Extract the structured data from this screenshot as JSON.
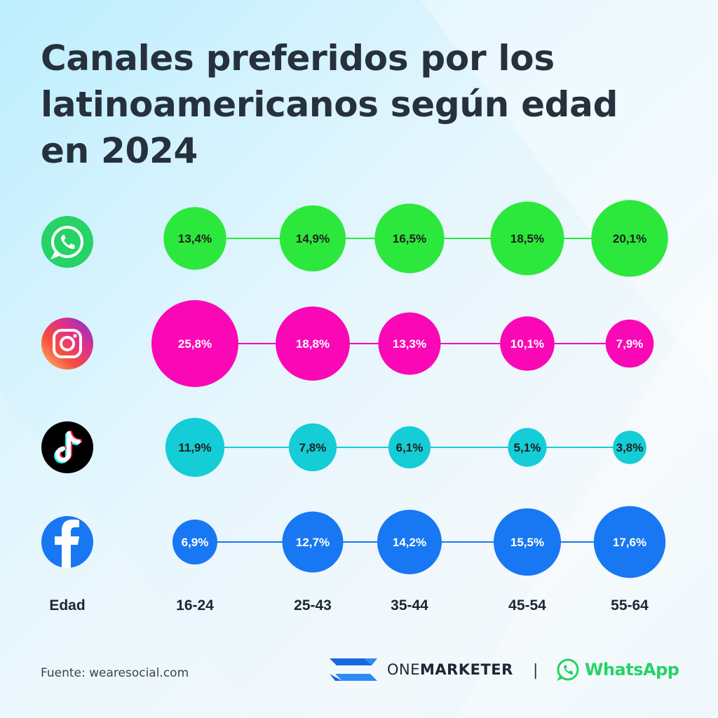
{
  "title": "Canales preferidos por los latinoamericanos según edad en 2024",
  "source": "Fuente: wearesocial.com",
  "brands": {
    "onemarketer_light": "ONE",
    "onemarketer_bold": "MARKETER",
    "separator": "|",
    "whatsapp": "WhatsApp"
  },
  "colors": {
    "whatsapp": "#2ce83c",
    "instagram": "#fa08b6",
    "tiktok": "#14cdd6",
    "facebook": "#1877f2",
    "label_dark": "#1d1d1d",
    "label_light": "#ffffff"
  },
  "chart_data": {
    "type": "bubble-matrix",
    "xlabel": "Edad",
    "categories": [
      "16-24",
      "25-43",
      "35-44",
      "45-54",
      "55-64"
    ],
    "series": [
      {
        "icon": "whatsapp-icon",
        "color": "#2ce83c",
        "label_color": "#1d1d1d",
        "values": [
          13.4,
          14.9,
          16.5,
          18.5,
          20.1
        ],
        "labels": [
          "13,4%",
          "14,9%",
          "16,5%",
          "18,5%",
          "20,1%"
        ]
      },
      {
        "icon": "instagram-icon",
        "color": "#fa08b6",
        "label_color": "#ffffff",
        "values": [
          25.8,
          18.8,
          13.3,
          10.1,
          7.9
        ],
        "labels": [
          "25,8%",
          "18,8%",
          "13,3%",
          "10,1%",
          "7,9%"
        ]
      },
      {
        "icon": "tiktok-icon",
        "color": "#14cdd6",
        "label_color": "#1d1d1d",
        "values": [
          11.9,
          7.8,
          6.1,
          5.1,
          3.8
        ],
        "labels": [
          "11,9%",
          "7,8%",
          "6,1%",
          "5,1%",
          "3,8%"
        ]
      },
      {
        "icon": "facebook-icon",
        "color": "#1877f2",
        "label_color": "#ffffff",
        "values": [
          6.9,
          12.7,
          14.2,
          15.5,
          17.6
        ],
        "labels": [
          "6,9%",
          "12,7%",
          "14,2%",
          "15,5%",
          "17,6%"
        ]
      }
    ]
  }
}
